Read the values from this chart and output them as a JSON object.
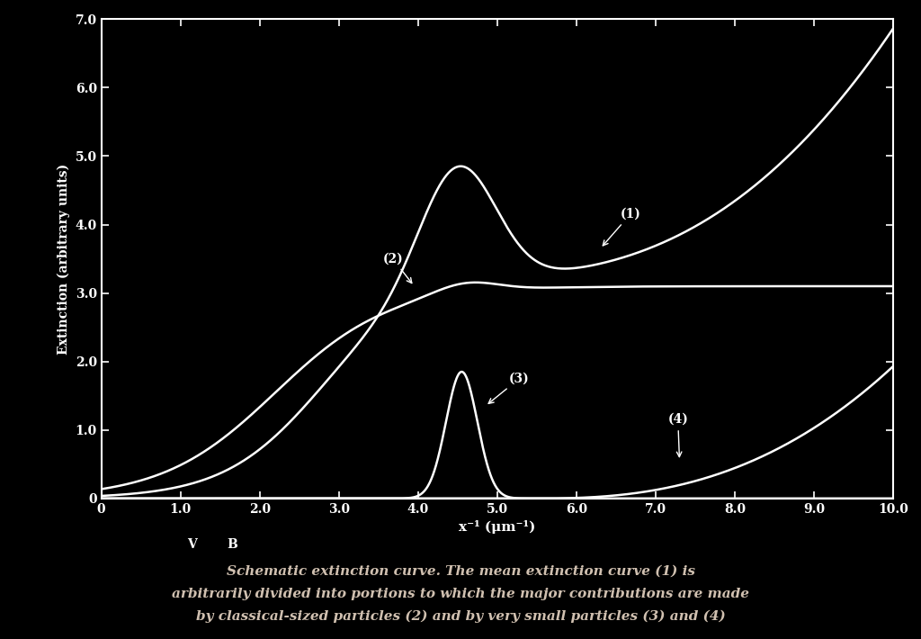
{
  "xlabel": "x⁻¹ (μm⁻¹)",
  "ylabel": "Extinction (arbitrary units)",
  "xlim": [
    0,
    10.0
  ],
  "ylim": [
    0,
    7.0
  ],
  "xticks": [
    0,
    1.0,
    2.0,
    3.0,
    4.0,
    5.0,
    6.0,
    7.0,
    8.0,
    9.0,
    10.0
  ],
  "yticks": [
    0,
    1.0,
    2.0,
    3.0,
    4.0,
    5.0,
    6.0,
    7.0
  ],
  "background_color": "#000000",
  "curve_color": "#ffffff",
  "caption_line1": "Schematic extinction curve. The mean extinction curve (1) is",
  "caption_line2": "arbitrarily divided into portions to which the major contributions are made",
  "caption_line3": "by classical-sized particles (2) and by very small particles (3) and (4)"
}
